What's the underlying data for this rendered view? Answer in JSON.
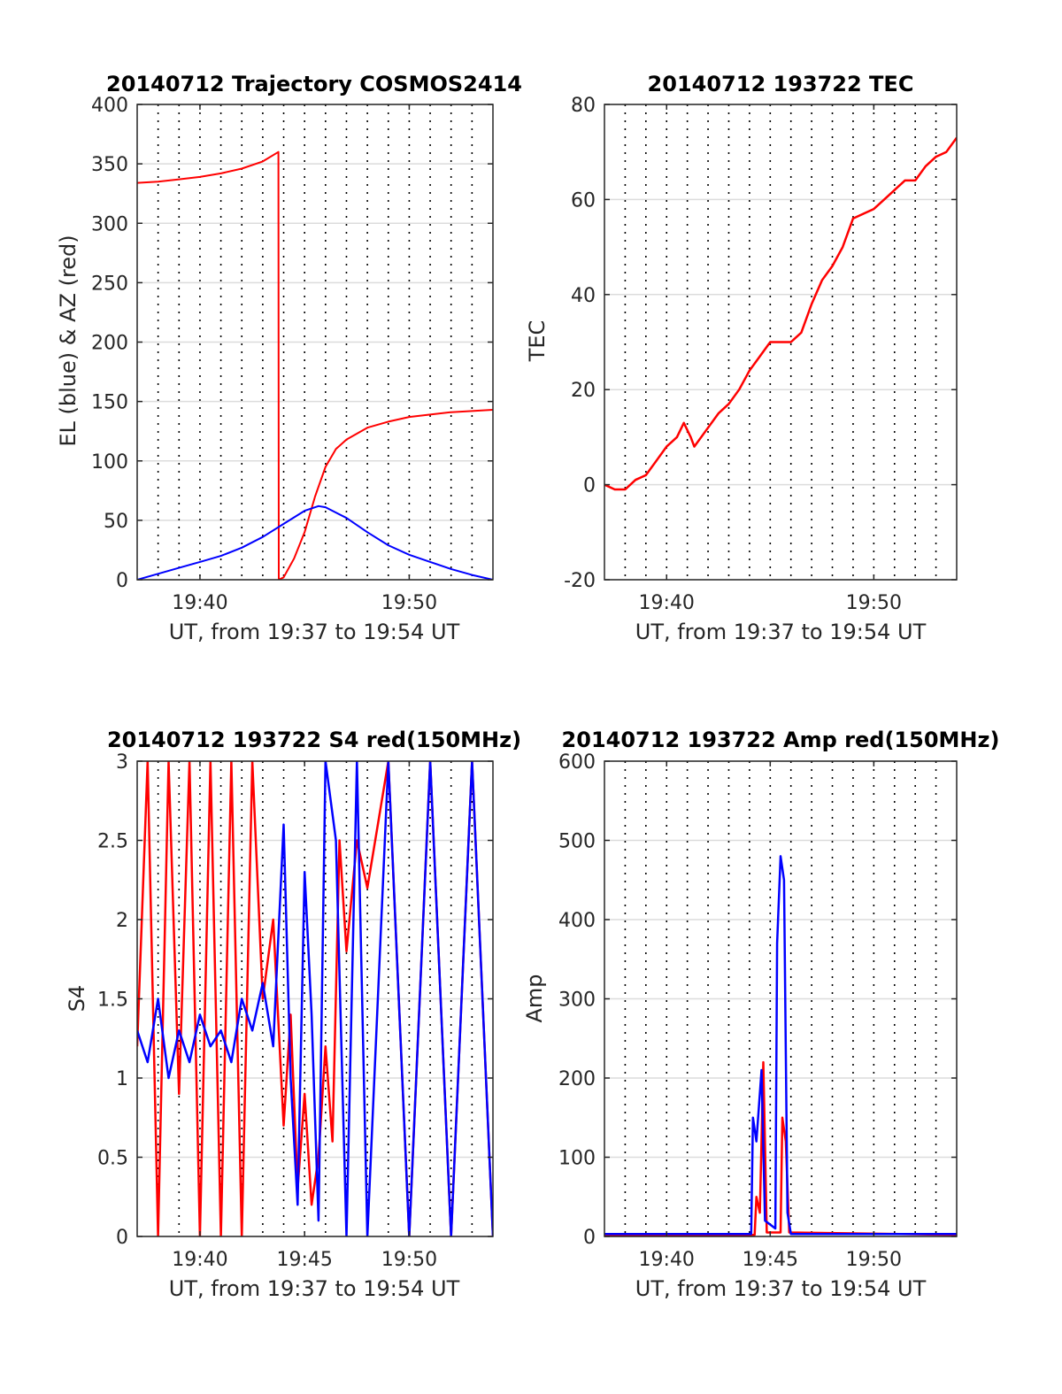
{
  "colors": {
    "red": "#ff0000",
    "blue": "#0000ff",
    "grid": "#dcdcdc",
    "axis": "#262626",
    "vgrid": "#000000"
  },
  "chart_data": [
    {
      "id": "traj",
      "type": "line",
      "title": "20140712 Trajectory COSMOS2414",
      "xlabel": "UT, from 19:37 to 19:54 UT",
      "ylabel": "EL (blue) & AZ (red)",
      "xlim": [
        "19:37",
        "19:54"
      ],
      "ylim": [
        0,
        400
      ],
      "x_ticks": [
        "19:40",
        "19:50"
      ],
      "y_ticks": [
        "0",
        "50",
        "100",
        "150",
        "200",
        "250",
        "300",
        "350",
        "400"
      ],
      "grid": "horizontal solid at y ticks, vertical dotted each minute",
      "series": [
        {
          "color": "red",
          "points": [
            [
              "19:37",
              334
            ],
            [
              "19:38",
              335
            ],
            [
              "19:39",
              337
            ],
            [
              "19:40",
              339
            ],
            [
              "19:41",
              342
            ],
            [
              "19:42",
              346
            ],
            [
              "19:43",
              352
            ],
            [
              "19:43:45",
              360
            ],
            [
              "19:43:46",
              0
            ],
            [
              "19:44",
              2
            ],
            [
              "19:44:30",
              18
            ],
            [
              "19:45",
              40
            ],
            [
              "19:45:30",
              70
            ],
            [
              "19:46",
              95
            ],
            [
              "19:46:30",
              110
            ],
            [
              "19:47",
              118
            ],
            [
              "19:48",
              128
            ],
            [
              "19:49",
              133
            ],
            [
              "19:50",
              137
            ],
            [
              "19:51",
              139
            ],
            [
              "19:52",
              141
            ],
            [
              "19:53",
              142
            ],
            [
              "19:54",
              143
            ]
          ]
        },
        {
          "color": "blue",
          "points": [
            [
              "19:37",
              0
            ],
            [
              "19:38",
              5
            ],
            [
              "19:39",
              10
            ],
            [
              "19:40",
              15
            ],
            [
              "19:41",
              20
            ],
            [
              "19:42",
              27
            ],
            [
              "19:43",
              36
            ],
            [
              "19:44",
              47
            ],
            [
              "19:45",
              58
            ],
            [
              "19:45:40",
              62
            ],
            [
              "19:46",
              61
            ],
            [
              "19:47",
              52
            ],
            [
              "19:48",
              40
            ],
            [
              "19:49",
              29
            ],
            [
              "19:50",
              21
            ],
            [
              "19:51",
              15
            ],
            [
              "19:52",
              9
            ],
            [
              "19:53",
              4
            ],
            [
              "19:54",
              0
            ]
          ]
        }
      ]
    },
    {
      "id": "tec",
      "type": "line",
      "title": "20140712 193722 TEC",
      "xlabel": "UT, from 19:37 to 19:54 UT",
      "ylabel": "TEC",
      "xlim": [
        "19:37",
        "19:54"
      ],
      "ylim": [
        -20,
        80
      ],
      "x_ticks": [
        "19:40",
        "19:50"
      ],
      "y_ticks": [
        "-20",
        "0",
        "20",
        "40",
        "60",
        "80"
      ],
      "series": [
        {
          "color": "red",
          "points": [
            [
              "19:37",
              0
            ],
            [
              "19:37:30",
              -1
            ],
            [
              "19:38",
              -1
            ],
            [
              "19:38:30",
              1
            ],
            [
              "19:39",
              2
            ],
            [
              "19:39:30",
              5
            ],
            [
              "19:40",
              8
            ],
            [
              "19:40:30",
              10
            ],
            [
              "19:40:50",
              13
            ],
            [
              "19:41:10",
              10
            ],
            [
              "19:41:20",
              8
            ],
            [
              "19:42",
              12
            ],
            [
              "19:42:30",
              15
            ],
            [
              "19:43",
              17
            ],
            [
              "19:43:30",
              20
            ],
            [
              "19:44",
              24
            ],
            [
              "19:44:30",
              27
            ],
            [
              "19:45",
              30
            ],
            [
              "19:45:30",
              30
            ],
            [
              "19:46",
              30
            ],
            [
              "19:46:30",
              32
            ],
            [
              "19:47",
              38
            ],
            [
              "19:47:30",
              43
            ],
            [
              "19:48",
              46
            ],
            [
              "19:48:30",
              50
            ],
            [
              "19:49",
              56
            ],
            [
              "19:49:30",
              57
            ],
            [
              "19:50",
              58
            ],
            [
              "19:50:30",
              60
            ],
            [
              "19:51",
              62
            ],
            [
              "19:51:30",
              64
            ],
            [
              "19:52",
              64
            ],
            [
              "19:52:30",
              67
            ],
            [
              "19:53",
              69
            ],
            [
              "19:53:30",
              70
            ],
            [
              "19:54",
              73
            ]
          ]
        }
      ]
    },
    {
      "id": "s4",
      "type": "line",
      "title": "20140712 193722 S4 red(150MHz)",
      "xlabel": "UT, from 19:37 to 19:54 UT",
      "ylabel": "S4",
      "xlim": [
        "19:37",
        "19:54"
      ],
      "ylim": [
        0,
        3
      ],
      "x_ticks": [
        "19:40",
        "19:45",
        "19:50"
      ],
      "y_ticks": [
        "0",
        "0.5",
        "1",
        "1.5",
        "2",
        "2.5",
        "3"
      ],
      "series": [
        {
          "color": "red",
          "points": [
            [
              "19:37",
              1.2
            ],
            [
              "19:37:30",
              3
            ],
            [
              "19:38",
              0
            ],
            [
              "19:38:30",
              3
            ],
            [
              "19:39",
              0.9
            ],
            [
              "19:39:30",
              3
            ],
            [
              "19:40",
              0
            ],
            [
              "19:40:30",
              3
            ],
            [
              "19:41",
              0
            ],
            [
              "19:41:30",
              3
            ],
            [
              "19:42",
              0
            ],
            [
              "19:42:30",
              3
            ],
            [
              "19:43",
              1.5
            ],
            [
              "19:43:30",
              2
            ],
            [
              "19:44",
              0.7
            ],
            [
              "19:44:20",
              1.4
            ],
            [
              "19:44:40",
              0.3
            ],
            [
              "19:45",
              0.9
            ],
            [
              "19:45:20",
              0.2
            ],
            [
              "19:45:40",
              0.5
            ],
            [
              "19:46",
              1.2
            ],
            [
              "19:46:20",
              0.6
            ],
            [
              "19:46:40",
              2.5
            ],
            [
              "19:47",
              1.8
            ],
            [
              "19:47:30",
              2.5
            ],
            [
              "19:48",
              2.2
            ],
            [
              "19:49",
              3
            ],
            [
              "19:50",
              0
            ],
            [
              "19:51",
              3
            ],
            [
              "19:52",
              0
            ],
            [
              "19:53",
              3
            ],
            [
              "19:54",
              0
            ]
          ]
        },
        {
          "color": "blue",
          "points": [
            [
              "19:37",
              1.3
            ],
            [
              "19:37:30",
              1.1
            ],
            [
              "19:38",
              1.5
            ],
            [
              "19:38:30",
              1.0
            ],
            [
              "19:39",
              1.3
            ],
            [
              "19:39:30",
              1.1
            ],
            [
              "19:40",
              1.4
            ],
            [
              "19:40:30",
              1.2
            ],
            [
              "19:41",
              1.3
            ],
            [
              "19:41:30",
              1.1
            ],
            [
              "19:42",
              1.5
            ],
            [
              "19:42:30",
              1.3
            ],
            [
              "19:43",
              1.6
            ],
            [
              "19:43:30",
              1.2
            ],
            [
              "19:44",
              2.6
            ],
            [
              "19:44:20",
              1.0
            ],
            [
              "19:44:40",
              0.2
            ],
            [
              "19:45",
              2.3
            ],
            [
              "19:45:20",
              1.4
            ],
            [
              "19:45:40",
              0.1
            ],
            [
              "19:46",
              3
            ],
            [
              "19:46:30",
              2.5
            ],
            [
              "19:47",
              0
            ],
            [
              "19:47:30",
              3
            ],
            [
              "19:48",
              0
            ],
            [
              "19:49",
              3
            ],
            [
              "19:50",
              0
            ],
            [
              "19:51",
              3
            ],
            [
              "19:52",
              0
            ],
            [
              "19:53",
              3
            ],
            [
              "19:54",
              0
            ]
          ]
        }
      ]
    },
    {
      "id": "amp",
      "type": "line",
      "title": "20140712 193722 Amp red(150MHz)",
      "xlabel": "UT, from 19:37 to 19:54 UT",
      "ylabel": "Amp",
      "xlim": [
        "19:37",
        "19:54"
      ],
      "ylim": [
        0,
        600
      ],
      "x_ticks": [
        "19:40",
        "19:45",
        "19:50"
      ],
      "y_ticks": [
        "0",
        "100",
        "200",
        "300",
        "400",
        "500",
        "600"
      ],
      "series": [
        {
          "color": "red",
          "points": [
            [
              "19:37",
              2
            ],
            [
              "19:44:15",
              2
            ],
            [
              "19:44:20",
              50
            ],
            [
              "19:44:30",
              30
            ],
            [
              "19:44:40",
              220
            ],
            [
              "19:44:50",
              5
            ],
            [
              "19:45:30",
              5
            ],
            [
              "19:45:35",
              150
            ],
            [
              "19:45:45",
              120
            ],
            [
              "19:45:55",
              5
            ],
            [
              "19:54",
              2
            ]
          ]
        },
        {
          "color": "blue",
          "points": [
            [
              "19:37",
              3
            ],
            [
              "19:44:05",
              3
            ],
            [
              "19:44:10",
              150
            ],
            [
              "19:44:20",
              120
            ],
            [
              "19:44:35",
              210
            ],
            [
              "19:44:45",
              20
            ],
            [
              "19:45:15",
              10
            ],
            [
              "19:45:20",
              370
            ],
            [
              "19:45:30",
              480
            ],
            [
              "19:45:40",
              450
            ],
            [
              "19:45:50",
              30
            ],
            [
              "19:46",
              3
            ],
            [
              "19:54",
              3
            ]
          ]
        }
      ]
    }
  ]
}
